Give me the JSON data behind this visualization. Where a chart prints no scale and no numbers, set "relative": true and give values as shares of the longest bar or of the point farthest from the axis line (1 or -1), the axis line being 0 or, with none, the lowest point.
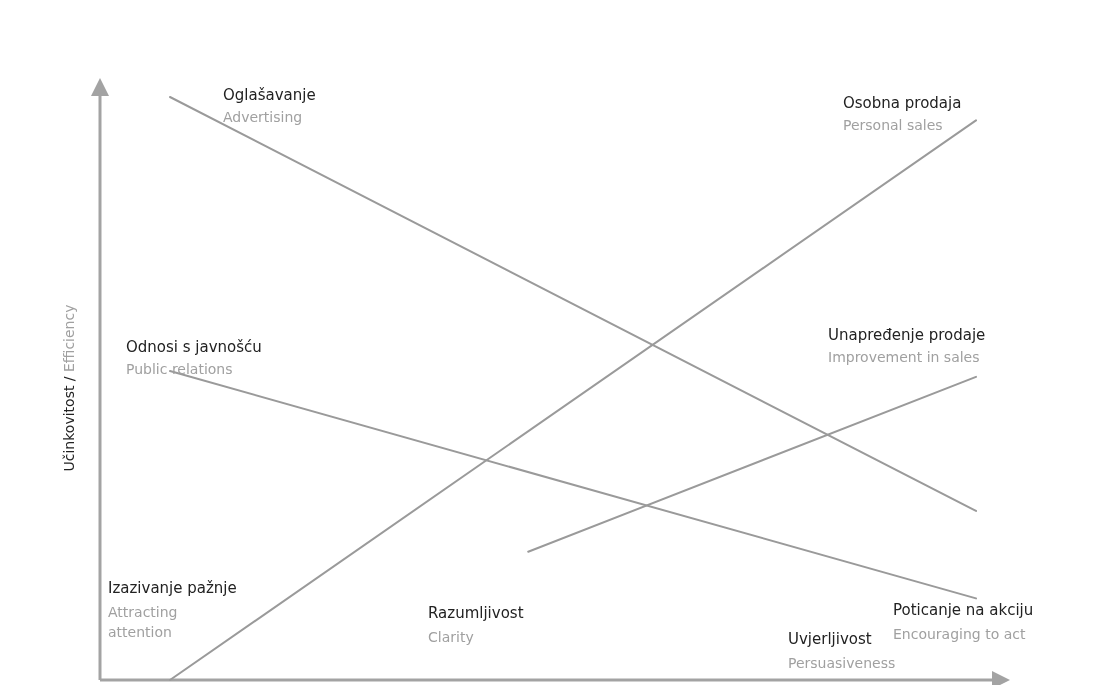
{
  "chart_data": {
    "type": "line",
    "relative": true,
    "ylabel": "Učinkovitost / Efficiency",
    "marker": "none",
    "line_style": "solid",
    "categories": [
      null,
      null,
      null,
      null,
      null,
      null,
      null,
      null,
      null,
      null
    ],
    "series": [
      {
        "name": "Oglašavanje",
        "color": "#9a9a9a",
        "values": [
          1,
          null,
          null,
          null,
          null,
          null,
          null,
          null,
          null,
          0.29
        ]
      },
      {
        "name": "Osobna prodaja",
        "color": "#9a9a9a",
        "values": [
          0,
          null,
          null,
          null,
          null,
          null,
          null,
          null,
          null,
          0.96
        ]
      },
      {
        "name": "Unapređenje prodaje",
        "color": "#9a9a9a",
        "values": [
          null,
          null,
          null,
          null,
          0.22,
          null,
          null,
          null,
          null,
          0.52
        ]
      },
      {
        "name": "Odnosi s javnošću",
        "color": "#9a9a9a",
        "values": [
          0.53,
          null,
          null,
          null,
          null,
          null,
          null,
          null,
          null,
          0.14
        ]
      }
    ],
    "annotations": [
      "Advertising",
      "Personal sales",
      "Improvement in sales",
      "Public relations",
      "Izazivanje pažnje",
      "Attracting attention",
      "Razumljivost",
      "Clarity",
      "Uvjerljivost",
      "Persuasiveness",
      "Poticanje na akciju",
      "Encouraging to act"
    ]
  }
}
